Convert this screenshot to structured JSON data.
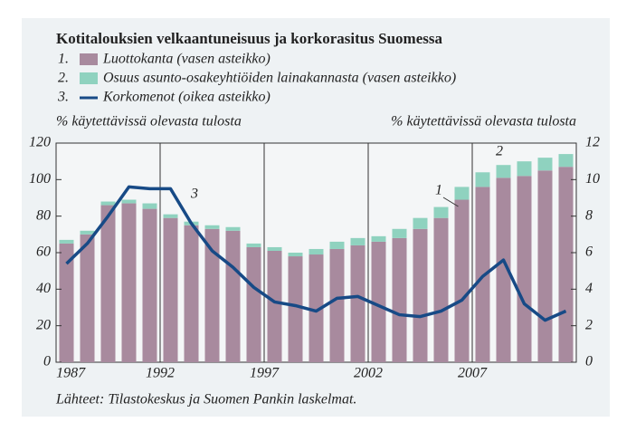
{
  "chart_data": {
    "type": "bar-line",
    "title": "Kotitalouksien velkaantuneisuus ja korkorasitus Suomessa",
    "y_label": "% käytettävissä olevasta tulosta",
    "y2_label": "% käytettävissä olevasta tulosta",
    "source": "Lähteet: Tilastokeskus ja Suomen Pankin laskelmat.",
    "categories": [
      "1987",
      null,
      null,
      null,
      null,
      "1992",
      null,
      null,
      null,
      null,
      "1997",
      null,
      null,
      null,
      null,
      "2002",
      null,
      null,
      null,
      null,
      "2007",
      null,
      null,
      null,
      null
    ],
    "series": [
      {
        "number": "1.",
        "name": "Luottokanta (vasen asteikko)",
        "color": "#a88a9e",
        "values": [
          65,
          70,
          86,
          87,
          84,
          79,
          75,
          73,
          72,
          63,
          61,
          58,
          59,
          62,
          64,
          66,
          68,
          73,
          79,
          89,
          96,
          101,
          102,
          105,
          107
        ]
      },
      {
        "number": "2.",
        "name": "Osuus asunto-osakeyhtiöiden lainakannasta (vasen asteikko)",
        "color": "#8fd2bf",
        "values": [
          2,
          2,
          2,
          2,
          3,
          2,
          2,
          2,
          2,
          2,
          2,
          2,
          3,
          4,
          4,
          3,
          5,
          6,
          6,
          7,
          8,
          7,
          8,
          7,
          7
        ]
      },
      {
        "number": "3.",
        "name": "Korkomenot (oikea asteikko)",
        "color": "#174a86",
        "axis": "y2",
        "values": [
          5.4,
          6.5,
          8.0,
          9.6,
          9.5,
          9.5,
          7.6,
          6.1,
          5.2,
          4.1,
          3.3,
          3.1,
          2.8,
          3.5,
          3.6,
          3.1,
          2.6,
          2.5,
          2.8,
          3.4,
          4.7,
          5.6,
          3.2,
          2.3,
          2.8
        ]
      }
    ],
    "annotations": [
      "1",
      "2",
      "3"
    ],
    "ylim": [
      0,
      120
    ],
    "yticks": [
      0,
      20,
      40,
      60,
      80,
      100,
      120
    ],
    "y2lim": [
      0,
      12
    ],
    "y2ticks": [
      0,
      2,
      4,
      6,
      8,
      10,
      12
    ]
  }
}
